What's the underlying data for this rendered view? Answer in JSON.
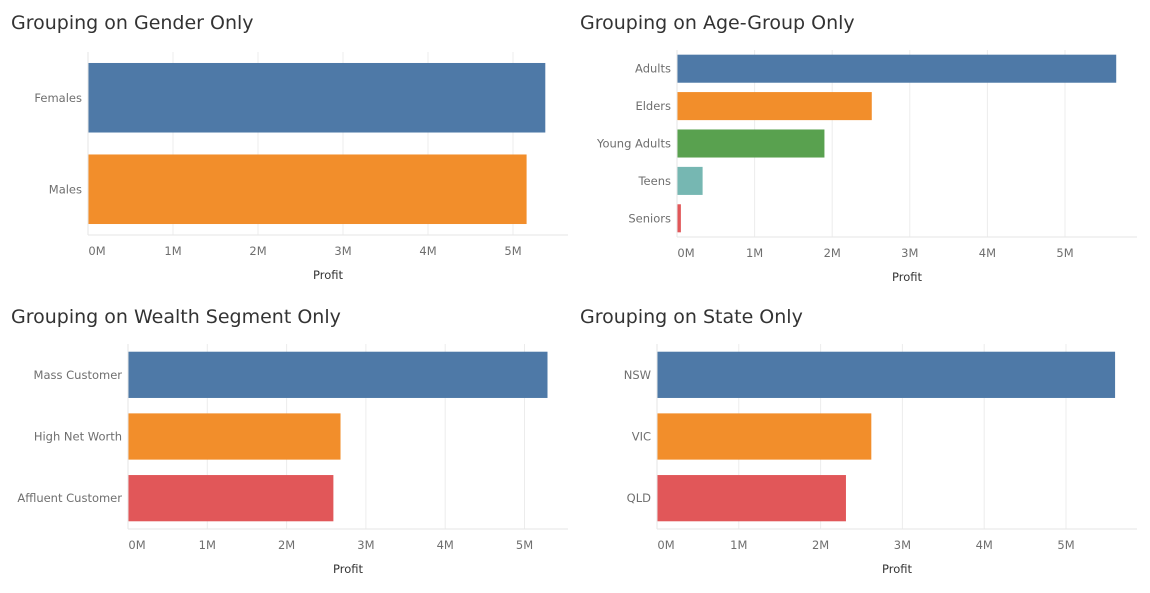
{
  "chart_data": [
    {
      "type": "bar",
      "orientation": "horizontal",
      "title": "Grouping on Gender Only",
      "xlabel": "Profit",
      "ylabel": "",
      "categories": [
        "Females",
        "Males"
      ],
      "values": [
        5.38,
        5.16
      ],
      "colors": [
        "#4e79a7",
        "#f28e2b"
      ],
      "xticks": [
        "0M",
        "1M",
        "2M",
        "3M",
        "4M",
        "5M"
      ],
      "xlim": [
        0,
        5.65
      ],
      "grid": true
    },
    {
      "type": "bar",
      "orientation": "horizontal",
      "title": "Grouping on Age-Group Only",
      "xlabel": "Profit",
      "ylabel": "",
      "categories": [
        "Adults",
        "Elders",
        "Young Adults",
        "Teens",
        "Seniors"
      ],
      "values": [
        5.66,
        2.51,
        1.9,
        0.33,
        0.05
      ],
      "colors": [
        "#4e79a7",
        "#f28e2b",
        "#59a14f",
        "#76b7b2",
        "#e15759"
      ],
      "xticks": [
        "0M",
        "1M",
        "2M",
        "3M",
        "4M",
        "5M"
      ],
      "xlim": [
        0,
        5.87
      ],
      "grid": true
    },
    {
      "type": "bar",
      "orientation": "horizontal",
      "title": "Grouping on Wealth Segment Only",
      "xlabel": "Profit",
      "ylabel": "",
      "categories": [
        "Mass Customer",
        "High Net Worth",
        "Affluent Customer"
      ],
      "values": [
        5.29,
        2.68,
        2.59
      ],
      "colors": [
        "#4e79a7",
        "#f28e2b",
        "#e15759"
      ],
      "xticks": [
        "0M",
        "1M",
        "2M",
        "3M",
        "4M",
        "5M"
      ],
      "xlim": [
        0,
        5.52
      ],
      "grid": true
    },
    {
      "type": "bar",
      "orientation": "horizontal",
      "title": "Grouping on State Only",
      "xlabel": "Profit",
      "ylabel": "",
      "categories": [
        "NSW",
        "VIC",
        "QLD"
      ],
      "values": [
        5.6,
        2.62,
        2.31
      ],
      "colors": [
        "#4e79a7",
        "#f28e2b",
        "#e15759"
      ],
      "xticks": [
        "0M",
        "1M",
        "2M",
        "3M",
        "4M",
        "5M"
      ],
      "xlim": [
        0,
        5.86
      ],
      "grid": true
    }
  ]
}
